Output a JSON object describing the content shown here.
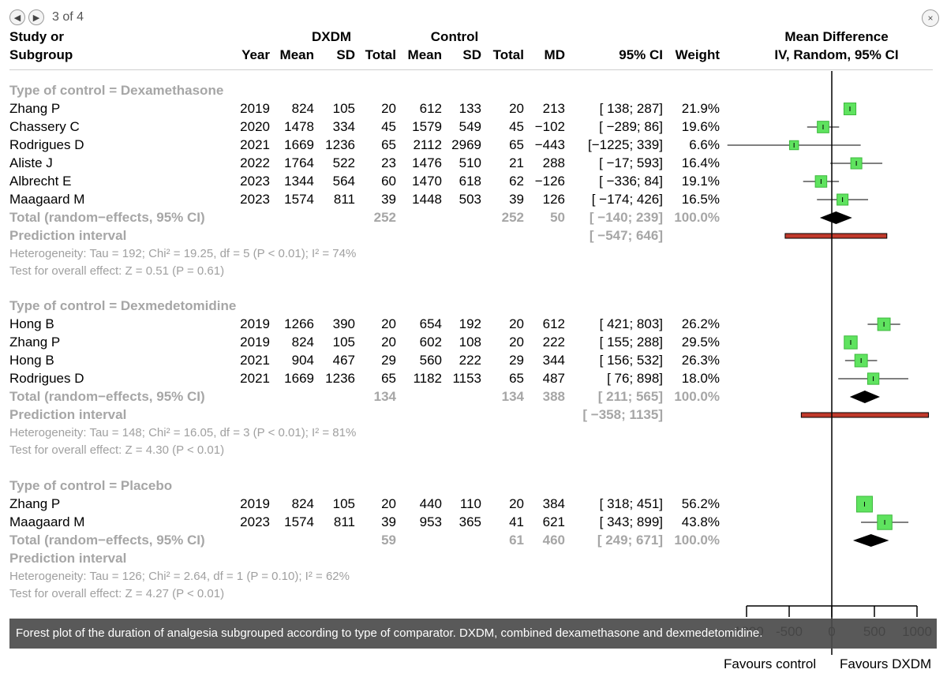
{
  "viewer": {
    "counter": "3 of 4",
    "close": "×",
    "prev": "◀",
    "next": "▶"
  },
  "caption": "Forest plot of the duration of analgesia subgrouped according to type of comparator. DXDM, combined dexamethasone and dexmedetomidine.",
  "headers": {
    "study_line1": "Study or",
    "study_line2": "Subgroup",
    "dxdm": "DXDM",
    "control": "Control",
    "year": "Year",
    "mean": "Mean",
    "sd": "SD",
    "total": "Total",
    "md": "MD",
    "ci": "95% CI",
    "weight": "Weight",
    "effect_line1": "Mean Difference",
    "effect_line2": "IV, Random, 95% CI"
  },
  "chart_data": {
    "type": "forest",
    "xlim": [
      -1000,
      1000
    ],
    "xticks": [
      "-1000",
      "-500",
      "0",
      "500",
      "1000"
    ],
    "xtick_values": [
      -1000,
      -500,
      0,
      500,
      1000
    ],
    "favours_left": "Favours control",
    "favours_right": "Favours DXDM",
    "groups": [
      {
        "title": "Type of control = Dexamethasone",
        "studies": [
          {
            "study": "Zhang P",
            "year": "2019",
            "e_mean": "824",
            "e_sd": "105",
            "e_total": "20",
            "c_mean": "612",
            "c_sd": "133",
            "c_total": "20",
            "md_text": "213",
            "ci_text": "[ 138; 287]",
            "weight": "21.9%",
            "md": 213,
            "lo": 138,
            "hi": 287,
            "w": 21.9
          },
          {
            "study": "Chassery C",
            "year": "2020",
            "e_mean": "1478",
            "e_sd": "334",
            "e_total": "45",
            "c_mean": "1579",
            "c_sd": "549",
            "c_total": "45",
            "md_text": "−102",
            "ci_text": "[ −289; 86]",
            "weight": "19.6%",
            "md": -102,
            "lo": -289,
            "hi": 86,
            "w": 19.6
          },
          {
            "study": "Rodrigues D",
            "year": "2021",
            "e_mean": "1669",
            "e_sd": "1236",
            "e_total": "65",
            "c_mean": "2112",
            "c_sd": "2969",
            "c_total": "65",
            "md_text": "−443",
            "ci_text": "[−1225; 339]",
            "weight": "6.6%",
            "md": -443,
            "lo": -1225,
            "hi": 339,
            "w": 6.6
          },
          {
            "study": "Aliste J",
            "year": "2022",
            "e_mean": "1764",
            "e_sd": "522",
            "e_total": "23",
            "c_mean": "1476",
            "c_sd": "510",
            "c_total": "21",
            "md_text": "288",
            "ci_text": "[ −17; 593]",
            "weight": "16.4%",
            "md": 288,
            "lo": -17,
            "hi": 593,
            "w": 16.4
          },
          {
            "study": "Albrecht E",
            "year": "2023",
            "e_mean": "1344",
            "e_sd": "564",
            "e_total": "60",
            "c_mean": "1470",
            "c_sd": "618",
            "c_total": "62",
            "md_text": "−126",
            "ci_text": "[ −336; 84]",
            "weight": "19.1%",
            "md": -126,
            "lo": -336,
            "hi": 84,
            "w": 19.1
          },
          {
            "study": "Maagaard M",
            "year": "2023",
            "e_mean": "1574",
            "e_sd": "811",
            "e_total": "39",
            "c_mean": "1448",
            "c_sd": "503",
            "c_total": "39",
            "md_text": "126",
            "ci_text": "[ −174; 426]",
            "weight": "16.5%",
            "md": 126,
            "lo": -174,
            "hi": 426,
            "w": 16.5
          }
        ],
        "total": {
          "label": "Total (random−effects, 95% CI)",
          "e_total": "252",
          "c_total": "252",
          "md_text": "50",
          "ci_text": "[ −140; 239]",
          "weight": "100.0%",
          "md": 50,
          "lo": -140,
          "hi": 239
        },
        "prediction": {
          "label": "Prediction interval",
          "ci_text": "[ −547; 646]",
          "lo": -547,
          "hi": 646
        },
        "heterogeneity": "Heterogeneity: Tau = 192; Chi² = 19.25, df = 5 (P < 0.01); I² = 74%",
        "overall": "Test for overall effect: Z = 0.51 (P = 0.61)"
      },
      {
        "title": "Type of control = Dexmedetomidine",
        "studies": [
          {
            "study": "Hong B",
            "year": "2019",
            "e_mean": "1266",
            "e_sd": "390",
            "e_total": "20",
            "c_mean": "654",
            "c_sd": "192",
            "c_total": "20",
            "md_text": "612",
            "ci_text": "[ 421; 803]",
            "weight": "26.2%",
            "md": 612,
            "lo": 421,
            "hi": 803,
            "w": 26.2
          },
          {
            "study": "Zhang P",
            "year": "2019",
            "e_mean": "824",
            "e_sd": "105",
            "e_total": "20",
            "c_mean": "602",
            "c_sd": "108",
            "c_total": "20",
            "md_text": "222",
            "ci_text": "[ 155; 288]",
            "weight": "29.5%",
            "md": 222,
            "lo": 155,
            "hi": 288,
            "w": 29.5
          },
          {
            "study": "Hong B",
            "year": "2021",
            "e_mean": "904",
            "e_sd": "467",
            "e_total": "29",
            "c_mean": "560",
            "c_sd": "222",
            "c_total": "29",
            "md_text": "344",
            "ci_text": "[ 156; 532]",
            "weight": "26.3%",
            "md": 344,
            "lo": 156,
            "hi": 532,
            "w": 26.3
          },
          {
            "study": "Rodrigues D",
            "year": "2021",
            "e_mean": "1669",
            "e_sd": "1236",
            "e_total": "65",
            "c_mean": "1182",
            "c_sd": "1153",
            "c_total": "65",
            "md_text": "487",
            "ci_text": "[ 76; 898]",
            "weight": "18.0%",
            "md": 487,
            "lo": 76,
            "hi": 898,
            "w": 18.0
          }
        ],
        "total": {
          "label": "Total (random−effects, 95% CI)",
          "e_total": "134",
          "c_total": "134",
          "md_text": "388",
          "ci_text": "[ 211; 565]",
          "weight": "100.0%",
          "md": 388,
          "lo": 211,
          "hi": 565
        },
        "prediction": {
          "label": "Prediction interval",
          "ci_text": "[ −358; 1135]",
          "lo": -358,
          "hi": 1135
        },
        "heterogeneity": "Heterogeneity: Tau = 148; Chi² = 16.05, df = 3 (P < 0.01); I² = 81%",
        "overall": "Test for overall effect: Z = 4.30 (P < 0.01)"
      },
      {
        "title": "Type of control = Placebo",
        "studies": [
          {
            "study": "Zhang P",
            "year": "2019",
            "e_mean": "824",
            "e_sd": "105",
            "e_total": "20",
            "c_mean": "440",
            "c_sd": "110",
            "c_total": "20",
            "md_text": "384",
            "ci_text": "[ 318; 451]",
            "weight": "56.2%",
            "md": 384,
            "lo": 318,
            "hi": 451,
            "w": 56.2
          },
          {
            "study": "Maagaard M",
            "year": "2023",
            "e_mean": "1574",
            "e_sd": "811",
            "e_total": "39",
            "c_mean": "953",
            "c_sd": "365",
            "c_total": "41",
            "md_text": "621",
            "ci_text": "[ 343; 899]",
            "weight": "43.8%",
            "md": 621,
            "lo": 343,
            "hi": 899,
            "w": 43.8
          }
        ],
        "total": {
          "label": "Total (random−effects, 95% CI)",
          "e_total": "59",
          "c_total": "61",
          "md_text": "460",
          "ci_text": "[ 249; 671]",
          "weight": "100.0%",
          "md": 460,
          "lo": 249,
          "hi": 671
        },
        "prediction": {
          "label": "Prediction interval"
        },
        "heterogeneity": "Heterogeneity: Tau = 126; Chi² = 2.64, df = 1 (P = 0.10); I² = 62%",
        "overall": "Test for overall effect: Z = 4.27 (P < 0.01)"
      }
    ],
    "colors": {
      "square": "#5fe35f",
      "square_border": "#3db83d",
      "diamond": "#000000",
      "prediction": "#c0392b",
      "gray_text": "#a6a6a6"
    }
  }
}
